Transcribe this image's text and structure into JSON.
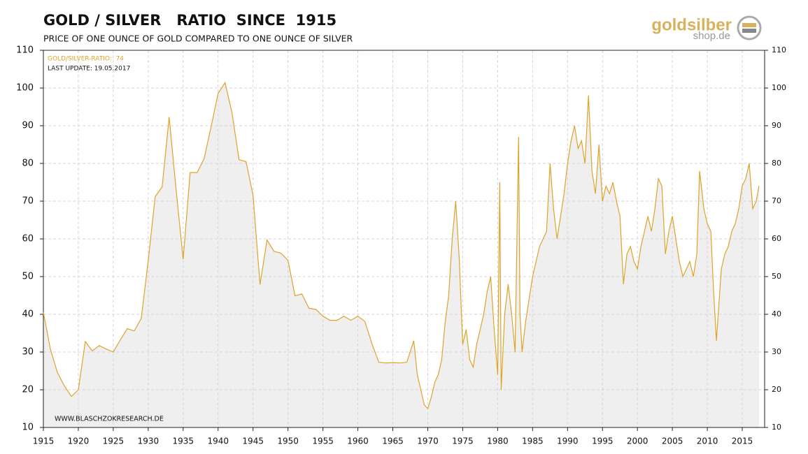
{
  "logo": {
    "brand": "goldsilber",
    "domain": "shop.de"
  },
  "chart_data": {
    "type": "area",
    "title": "GOLD / SILVER   RATIO  SINCE  1915",
    "subtitle": "PRICE OF ONE OUNCE OF GOLD COMPARED TO ONE OUNCE OF SILVER",
    "legend_label": "GOLD/SILVER-RATIO:  74",
    "last_update": "LAST UPDATE: 19.05.2017",
    "source": "WWW.BLASCHZOKRESEARCH.DE",
    "color": "#dea42a",
    "fill": "#efefef",
    "grid": true,
    "xlim": [
      1915,
      2018.2
    ],
    "xticks": [
      1915,
      1920,
      1925,
      1930,
      1935,
      1940,
      1945,
      1950,
      1955,
      1960,
      1965,
      1970,
      1975,
      1980,
      1985,
      1990,
      1995,
      2000,
      2005,
      2010,
      2015
    ],
    "ylim": [
      10,
      110
    ],
    "yticks": [
      10,
      20,
      30,
      40,
      50,
      60,
      70,
      80,
      90,
      100,
      110
    ],
    "x": [
      1915,
      1916,
      1917,
      1918,
      1919,
      1920,
      1921,
      1922,
      1923,
      1924,
      1925,
      1926,
      1927,
      1928,
      1929,
      1930,
      1931,
      1932,
      1933,
      1934,
      1935,
      1936,
      1937,
      1938,
      1939,
      1940,
      1941,
      1942,
      1943,
      1944,
      1945,
      1946,
      1947,
      1948,
      1949,
      1950,
      1951,
      1952,
      1953,
      1954,
      1955,
      1956,
      1957,
      1958,
      1959,
      1960,
      1961,
      1962,
      1963,
      1964,
      1965,
      1966,
      1967,
      1968,
      1968.5,
      1969,
      1969.5,
      1970,
      1970.5,
      1971,
      1971.5,
      1972,
      1972.5,
      1973,
      1973.5,
      1974,
      1974.5,
      1975,
      1975.5,
      1976,
      1976.5,
      1977,
      1977.5,
      1978,
      1978.5,
      1979,
      1979.5,
      1980,
      1980.3,
      1980.5,
      1981,
      1981.5,
      1982,
      1982.5,
      1983,
      1983.2,
      1983.5,
      1984,
      1984.5,
      1985,
      1985.5,
      1986,
      1986.5,
      1987,
      1987.5,
      1988,
      1988.5,
      1989,
      1989.5,
      1990,
      1990.5,
      1991,
      1991.5,
      1992,
      1992.5,
      1993,
      1993.5,
      1994,
      1994.5,
      1995,
      1995.5,
      1996,
      1996.5,
      1997,
      1997.5,
      1998,
      1998.5,
      1999,
      1999.5,
      2000,
      2000.5,
      2001,
      2001.5,
      2002,
      2002.5,
      2003,
      2003.5,
      2004,
      2004.5,
      2005,
      2005.5,
      2006,
      2006.5,
      2007,
      2007.5,
      2008,
      2008.5,
      2008.9,
      2009.5,
      2010,
      2010.5,
      2010.9,
      2011.3,
      2011.7,
      2012,
      2012.5,
      2013,
      2013.5,
      2014,
      2014.5,
      2015,
      2015.5,
      2016,
      2016.5,
      2017,
      2017.4
    ],
    "values": [
      40.5,
      30.8,
      24.6,
      21,
      18.2,
      20,
      32.8,
      30.3,
      31.7,
      30.8,
      30,
      33.2,
      36.2,
      35.6,
      38.9,
      54.3,
      71.2,
      73.8,
      92.3,
      72.9,
      54.6,
      77.6,
      77.6,
      81.3,
      89.8,
      98.6,
      101.4,
      93.4,
      81,
      80.5,
      71.6,
      47.9,
      59.7,
      56.7,
      56.2,
      54.3,
      44.9,
      45.4,
      41.6,
      41.3,
      39.5,
      38.4,
      38.4,
      39.5,
      38.4,
      39.5,
      38.1,
      32.3,
      27.3,
      27.1,
      27.2,
      27.1,
      27.3,
      33,
      24,
      20,
      16,
      15,
      18,
      22,
      24,
      28,
      38,
      45,
      60,
      70,
      55,
      32,
      36,
      28,
      26,
      32,
      36,
      40,
      46,
      50,
      36,
      24,
      75,
      20,
      40,
      48,
      40,
      30,
      87,
      40,
      30,
      38,
      44,
      50,
      54,
      58,
      60,
      62,
      80,
      68,
      60,
      66,
      72,
      80,
      86,
      90,
      84,
      86,
      80,
      98,
      78,
      72,
      85,
      70,
      74,
      72,
      75,
      70,
      66,
      48,
      56,
      58,
      54,
      52,
      58,
      62,
      66,
      62,
      68,
      76,
      74,
      56,
      62,
      66,
      60,
      54,
      50,
      52,
      54,
      50,
      56,
      78,
      68,
      64,
      62,
      46,
      33,
      44,
      52,
      56,
      58,
      62,
      64,
      68,
      74,
      76,
      80,
      68,
      70,
      74
    ]
  }
}
